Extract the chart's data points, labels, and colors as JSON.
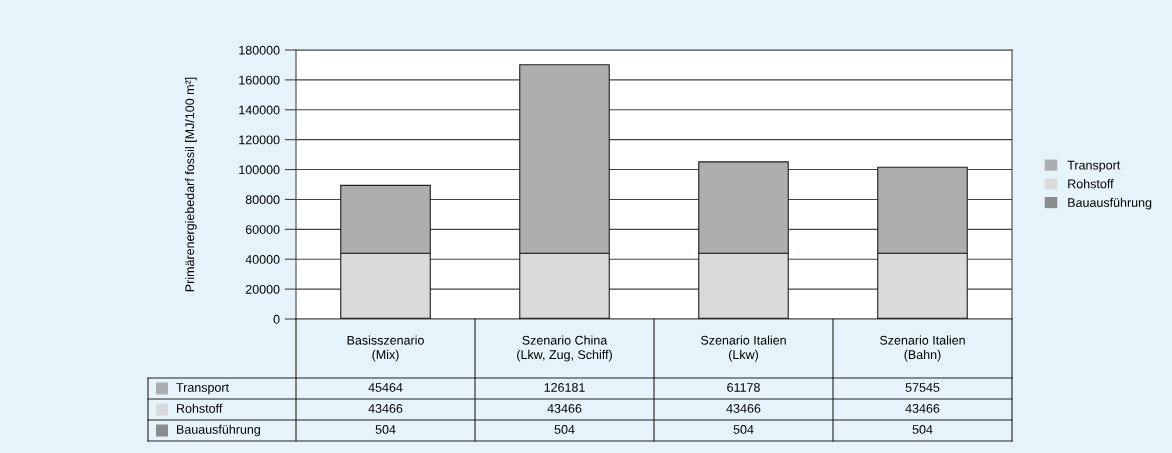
{
  "chart_data": {
    "type": "bar",
    "stacked": true,
    "data_labels": true,
    "grid": "y",
    "legend": "right",
    "ylabel": "Primärenergiebedarf fossil [MJ/100 m²]",
    "categories": [
      "Basisszenario\n(Mix)",
      "Szenario China\n(Lkw, Zug, Schiff)",
      "Szenario Italien\n(Lkw)",
      "Szenario Italien\n(Bahn)"
    ],
    "series": [
      {
        "name": "Bauausführung",
        "color": "#8a8b8d",
        "values": [
          504,
          504,
          504,
          504
        ]
      },
      {
        "name": "Rohstoff",
        "color": "#d9dadc",
        "values": [
          43466,
          43466,
          43466,
          43466
        ]
      },
      {
        "name": "Transport",
        "color": "#adaeb0",
        "values": [
          45464,
          126181,
          61178,
          57545
        ]
      }
    ],
    "ylim": [
      0,
      180000
    ],
    "yticks": [
      0,
      20000,
      40000,
      60000,
      80000,
      100000,
      120000,
      140000,
      160000,
      180000
    ]
  }
}
